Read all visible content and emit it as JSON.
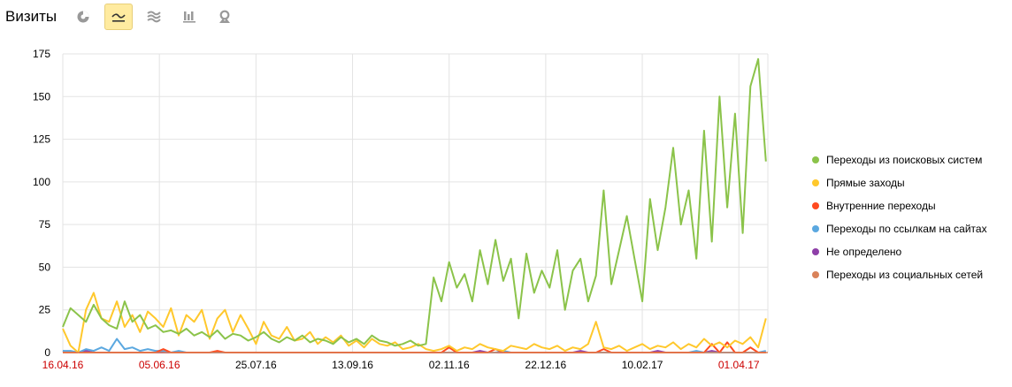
{
  "header": {
    "title": "Визиты",
    "views": [
      {
        "name": "pie-chart-icon",
        "active": false
      },
      {
        "name": "line-chart-icon",
        "active": true
      },
      {
        "name": "area-chart-icon",
        "active": false
      },
      {
        "name": "bar-chart-icon",
        "active": false
      },
      {
        "name": "map-icon",
        "active": false
      }
    ]
  },
  "chart_data": {
    "type": "line",
    "title": "",
    "xlabel": "",
    "ylabel": "",
    "ylim": [
      0,
      175
    ],
    "yticks": [
      "0",
      "25",
      "50",
      "75",
      "100",
      "125",
      "150",
      "175"
    ],
    "xticks": [
      {
        "label": "16.04.16",
        "weekend": true
      },
      {
        "label": "05.06.16",
        "weekend": true
      },
      {
        "label": "25.07.16",
        "weekend": false
      },
      {
        "label": "13.09.16",
        "weekend": false
      },
      {
        "label": "02.11.16",
        "weekend": false
      },
      {
        "label": "22.12.16",
        "weekend": false
      },
      {
        "label": "10.02.17",
        "weekend": false
      },
      {
        "label": "01.04.17",
        "weekend": true
      }
    ],
    "xlim": [
      "16.04.16",
      "16.04.17"
    ],
    "grid": true,
    "legend_position": "right",
    "weekend_label_color": "#cc0000",
    "x": [
      "16.04.16",
      "20.04.16",
      "24.04.16",
      "28.04.16",
      "02.05.16",
      "06.05.16",
      "10.05.16",
      "14.05.16",
      "18.05.16",
      "22.05.16",
      "26.05.16",
      "30.05.16",
      "03.06.16",
      "07.06.16",
      "11.06.16",
      "15.06.16",
      "19.06.16",
      "23.06.16",
      "27.06.16",
      "01.07.16",
      "05.07.16",
      "09.07.16",
      "13.07.16",
      "17.07.16",
      "21.07.16",
      "25.07.16",
      "29.07.16",
      "02.08.16",
      "06.08.16",
      "10.08.16",
      "14.08.16",
      "18.08.16",
      "22.08.16",
      "26.08.16",
      "30.08.16",
      "03.09.16",
      "07.09.16",
      "11.09.16",
      "15.09.16",
      "19.09.16",
      "23.09.16",
      "27.09.16",
      "01.10.16",
      "05.10.16",
      "09.10.16",
      "13.10.16",
      "17.10.16",
      "21.10.16",
      "25.10.16",
      "29.10.16",
      "02.11.16",
      "06.11.16",
      "10.11.16",
      "14.11.16",
      "18.11.16",
      "22.11.16",
      "26.11.16",
      "30.11.16",
      "04.12.16",
      "08.12.16",
      "12.12.16",
      "16.12.16",
      "20.12.16",
      "24.12.16",
      "28.12.16",
      "01.01.17",
      "05.01.17",
      "09.01.17",
      "13.01.17",
      "17.01.17",
      "21.01.17",
      "25.01.17",
      "29.01.17",
      "02.02.17",
      "06.02.17",
      "10.02.17",
      "14.02.17",
      "18.02.17",
      "22.02.17",
      "26.02.17",
      "02.03.17",
      "06.03.17",
      "10.03.17",
      "14.03.17",
      "18.03.17",
      "22.03.17",
      "26.03.17",
      "30.03.17",
      "03.04.17",
      "07.04.17",
      "11.04.17",
      "15.04.17"
    ],
    "series": [
      {
        "name": "Переходы из поисковых систем",
        "color": "#8bc34a",
        "values": [
          15,
          26,
          22,
          18,
          28,
          20,
          16,
          14,
          30,
          18,
          22,
          14,
          16,
          12,
          13,
          11,
          14,
          10,
          12,
          9,
          13,
          8,
          11,
          10,
          7,
          9,
          12,
          8,
          6,
          9,
          7,
          10,
          6,
          8,
          7,
          5,
          9,
          6,
          8,
          5,
          10,
          7,
          6,
          4,
          5,
          7,
          4,
          5,
          44,
          30,
          53,
          38,
          46,
          30,
          60,
          40,
          66,
          42,
          55,
          20,
          58,
          35,
          48,
          38,
          60,
          25,
          48,
          55,
          30,
          45,
          95,
          40,
          60,
          80,
          55,
          30,
          90,
          60,
          85,
          120,
          75,
          95,
          55,
          130,
          65,
          150,
          85,
          140,
          70,
          156,
          172,
          112
        ]
      },
      {
        "name": "Прямые заходы",
        "color": "#ffc82c",
        "values": [
          14,
          4,
          0,
          25,
          35,
          20,
          18,
          30,
          15,
          22,
          12,
          24,
          20,
          15,
          26,
          10,
          22,
          18,
          25,
          8,
          20,
          25,
          12,
          22,
          14,
          5,
          18,
          10,
          8,
          15,
          7,
          8,
          12,
          5,
          9,
          6,
          10,
          4,
          7,
          3,
          8,
          5,
          4,
          6,
          2,
          3,
          5,
          2,
          1,
          2,
          4,
          1,
          3,
          2,
          5,
          3,
          2,
          1,
          4,
          3,
          2,
          5,
          3,
          2,
          4,
          1,
          3,
          2,
          5,
          18,
          3,
          2,
          4,
          1,
          3,
          5,
          2,
          4,
          3,
          6,
          2,
          5,
          3,
          8,
          4,
          6,
          3,
          7,
          5,
          9,
          3,
          20
        ]
      },
      {
        "name": "Внутренние переходы",
        "color": "#ff4a1f",
        "values": [
          0,
          0,
          0,
          0,
          0,
          0,
          0,
          0,
          0,
          0,
          0,
          0,
          0,
          2,
          0,
          0,
          0,
          0,
          0,
          0,
          1,
          0,
          0,
          0,
          0,
          0,
          0,
          0,
          0,
          0,
          0,
          0,
          0,
          0,
          0,
          0,
          0,
          0,
          0,
          0,
          0,
          0,
          0,
          0,
          0,
          0,
          0,
          0,
          0,
          0,
          3,
          0,
          0,
          0,
          0,
          0,
          2,
          0,
          0,
          0,
          0,
          0,
          0,
          0,
          0,
          0,
          0,
          0,
          0,
          0,
          2,
          0,
          0,
          0,
          0,
          0,
          0,
          0,
          0,
          0,
          0,
          0,
          0,
          0,
          5,
          0,
          6,
          0,
          0,
          3,
          0,
          0
        ]
      },
      {
        "name": "Переходы по ссылкам на сайтах",
        "color": "#5ba8e0",
        "values": [
          1,
          1,
          0,
          2,
          1,
          3,
          1,
          8,
          2,
          3,
          1,
          2,
          1,
          1,
          0,
          1,
          0,
          0,
          0,
          0,
          0,
          0,
          0,
          0,
          0,
          0,
          0,
          0,
          0,
          0,
          0,
          0,
          0,
          0,
          0,
          0,
          0,
          0,
          0,
          0,
          0,
          0,
          0,
          0,
          0,
          0,
          0,
          0,
          0,
          0,
          0,
          0,
          0,
          0,
          0,
          0,
          0,
          1,
          0,
          0,
          0,
          0,
          0,
          0,
          0,
          0,
          0,
          0,
          0,
          0,
          0,
          0,
          0,
          0,
          0,
          0,
          0,
          0,
          0,
          0,
          0,
          0,
          1,
          0,
          0,
          0,
          0,
          0,
          0,
          0,
          0,
          1
        ]
      },
      {
        "name": "Не определено",
        "color": "#8e3fa8",
        "values": [
          1,
          0,
          0,
          1,
          0,
          0,
          0,
          0,
          0,
          0,
          0,
          0,
          0,
          0,
          0,
          0,
          0,
          0,
          0,
          0,
          0,
          0,
          0,
          0,
          0,
          0,
          0,
          0,
          0,
          0,
          0,
          0,
          0,
          0,
          0,
          0,
          0,
          0,
          0,
          0,
          0,
          0,
          0,
          0,
          0,
          0,
          0,
          0,
          0,
          0,
          0,
          0,
          0,
          0,
          1,
          0,
          0,
          0,
          0,
          0,
          0,
          0,
          0,
          0,
          0,
          0,
          0,
          1,
          0,
          0,
          0,
          0,
          0,
          0,
          0,
          0,
          0,
          1,
          0,
          0,
          0,
          0,
          0,
          0,
          1,
          0,
          0,
          0,
          0,
          0,
          0,
          0
        ]
      },
      {
        "name": "Переходы из социальных сетей",
        "color": "#d9825a",
        "values": [
          0,
          0,
          0,
          0,
          0,
          0,
          0,
          0,
          0,
          0,
          0,
          0,
          0,
          0,
          0,
          0,
          0,
          0,
          0,
          0,
          0,
          0,
          0,
          0,
          0,
          0,
          0,
          0,
          0,
          0,
          0,
          0,
          0,
          0,
          0,
          0,
          0,
          0,
          0,
          0,
          0,
          0,
          0,
          0,
          0,
          0,
          0,
          0,
          0,
          0,
          0,
          0,
          0,
          0,
          0,
          0,
          0,
          0,
          0,
          0,
          0,
          0,
          0,
          0,
          0,
          0,
          0,
          0,
          0,
          0,
          0,
          0,
          0,
          0,
          0,
          0,
          0,
          0,
          0,
          0,
          0,
          0,
          0,
          0,
          0,
          0,
          0,
          0,
          0,
          0,
          0,
          0
        ]
      }
    ]
  }
}
